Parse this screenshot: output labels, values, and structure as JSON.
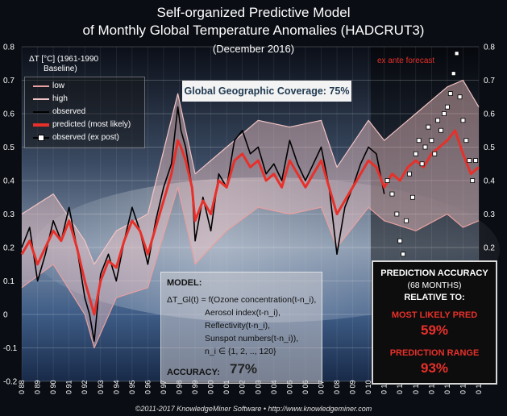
{
  "colors": {
    "low": "#e8a0a0",
    "high": "#f2c4c4",
    "observed": "#000000",
    "predicted": "#e8302a",
    "expost": "#ffffff",
    "accent": "#e8302a"
  },
  "header": {
    "title_line1": "Self-organized Predictive Model",
    "title_line2": "of Monthly Global Temperature Anomalies (HADCRUT3)",
    "title_line3": "(December 2016)"
  },
  "ylabel": {
    "line1": "ΔT [°C] (1961-1990",
    "line2": "Baseline)"
  },
  "legend": {
    "low": "low",
    "high": "high",
    "observed": "observed",
    "predicted": "predicted (most likely)",
    "expost": "observed (ex post)"
  },
  "coverage": "Global Geographic Coverage: 75%",
  "forecast_label": "ex ante forecast",
  "model": {
    "title": "MODEL:",
    "line1": "ΔT_Gl(t) = f(Ozone concentration(t-n_i),",
    "line2": "Aerosol index(t-n_i),",
    "line3": "Reflectivity(t-n_i),",
    "line4": "Sunspot numbers(t-n_i)),",
    "line5": "n_i ∈ {1, 2, .., 120}",
    "accuracy_label": "ACCURACY:",
    "accuracy_value": "77%"
  },
  "prediction_accuracy": {
    "title": "PREDICTION ACCURACY",
    "subtitle": "(68 MONTHS)",
    "relative": "RELATIVE TO:",
    "most_likely_label": "MOST LIKELY PRED",
    "most_likely_value": "59%",
    "range_label": "PREDICTION RANGE",
    "range_value": "93%"
  },
  "copyright": "©2011-2017 KnowledgeMiner Software  •  http://www.knowledgeminer.com",
  "chart_data": {
    "type": "line",
    "x_range": [
      1988,
      2017
    ],
    "ylim": [
      -0.2,
      0.8
    ],
    "ytick_labels": [
      "-0.2",
      "-0.1",
      "0",
      "0.1",
      "0.2",
      "0.3",
      "0.4",
      "0.5",
      "0.6",
      "0.7",
      "0.8"
    ],
    "xtick_labels": [
      "0 88",
      "0 89",
      "0 90",
      "0 91",
      "0 92",
      "0 93",
      "0 94",
      "0 95",
      "0 96",
      "0 97",
      "0 98",
      "0 99",
      "0 00",
      "0 01",
      "0 02",
      "0 03",
      "0 04",
      "0 05",
      "0 06",
      "0 07",
      "0 08",
      "0 09",
      "0 10",
      "0 11",
      "0 12",
      "0 13",
      "0 14",
      "0 15",
      "0 16",
      "0 17"
    ],
    "forecast_start": 2011.2,
    "series": [
      {
        "name": "observed",
        "x": [
          1988.0,
          1988.5,
          1989.0,
          1989.5,
          1990.0,
          1990.5,
          1991.0,
          1991.5,
          1992.0,
          1992.3,
          1992.6,
          1993.0,
          1993.5,
          1994.0,
          1994.5,
          1995.0,
          1995.5,
          1996.0,
          1996.5,
          1997.0,
          1997.5,
          1997.9,
          1998.1,
          1998.4,
          1998.8,
          1999.0,
          1999.5,
          2000.0,
          2000.5,
          2001.0,
          2001.5,
          2002.0,
          2002.5,
          2003.0,
          2003.5,
          2004.0,
          2004.5,
          2005.0,
          2005.5,
          2006.0,
          2006.5,
          2007.0,
          2007.5,
          2008.0,
          2008.5,
          2009.0,
          2009.5,
          2010.0,
          2010.5,
          2011.0
        ],
        "y": [
          0.2,
          0.26,
          0.1,
          0.18,
          0.28,
          0.22,
          0.32,
          0.2,
          0.05,
          0.0,
          -0.08,
          0.12,
          0.18,
          0.1,
          0.22,
          0.32,
          0.25,
          0.15,
          0.28,
          0.38,
          0.45,
          0.62,
          0.55,
          0.5,
          0.38,
          0.22,
          0.35,
          0.25,
          0.42,
          0.38,
          0.52,
          0.55,
          0.48,
          0.5,
          0.42,
          0.45,
          0.4,
          0.52,
          0.45,
          0.4,
          0.45,
          0.5,
          0.38,
          0.18,
          0.32,
          0.38,
          0.45,
          0.5,
          0.48,
          0.36
        ]
      },
      {
        "name": "predicted (most likely)",
        "x": [
          1988.0,
          1988.5,
          1989.0,
          1989.5,
          1990.0,
          1990.5,
          1991.0,
          1991.5,
          1992.0,
          1992.3,
          1992.6,
          1993.0,
          1993.5,
          1994.0,
          1994.5,
          1995.0,
          1995.5,
          1996.0,
          1996.5,
          1997.0,
          1997.5,
          1997.9,
          1998.1,
          1998.4,
          1998.8,
          1999.0,
          1999.5,
          2000.0,
          2000.5,
          2001.0,
          2001.5,
          2002.0,
          2002.5,
          2003.0,
          2003.5,
          2004.0,
          2004.5,
          2005.0,
          2005.5,
          2006.0,
          2006.5,
          2007.0,
          2007.5,
          2008.0,
          2008.5,
          2009.0,
          2009.5,
          2010.0,
          2010.5,
          2011.0,
          2011.5,
          2012.0,
          2012.5,
          2013.0,
          2013.5,
          2014.0,
          2014.5,
          2015.0,
          2015.5,
          2016.0,
          2016.5,
          2017.0
        ],
        "y": [
          0.18,
          0.22,
          0.15,
          0.2,
          0.25,
          0.22,
          0.28,
          0.2,
          0.1,
          0.05,
          0.0,
          0.1,
          0.16,
          0.14,
          0.22,
          0.28,
          0.25,
          0.18,
          0.26,
          0.34,
          0.42,
          0.52,
          0.5,
          0.46,
          0.38,
          0.28,
          0.34,
          0.3,
          0.4,
          0.38,
          0.46,
          0.48,
          0.44,
          0.46,
          0.4,
          0.42,
          0.38,
          0.46,
          0.42,
          0.38,
          0.42,
          0.46,
          0.38,
          0.3,
          0.34,
          0.38,
          0.42,
          0.46,
          0.44,
          0.38,
          0.42,
          0.4,
          0.44,
          0.46,
          0.44,
          0.48,
          0.5,
          0.52,
          0.55,
          0.48,
          0.42,
          0.44
        ]
      },
      {
        "name": "low",
        "x": [
          1988.0,
          1990.0,
          1992.0,
          1992.6,
          1994.0,
          1996.0,
          1997.9,
          1999.0,
          2001.0,
          2003.0,
          2005.0,
          2007.0,
          2008.0,
          2010.0,
          2011.0,
          2013.0,
          2015.0,
          2016.0,
          2017.0
        ],
        "y": [
          0.08,
          0.15,
          0.0,
          -0.1,
          0.05,
          0.08,
          0.38,
          0.15,
          0.25,
          0.32,
          0.3,
          0.32,
          0.2,
          0.32,
          0.28,
          0.25,
          0.3,
          0.26,
          0.28
        ]
      },
      {
        "name": "high",
        "x": [
          1988.0,
          1990.0,
          1992.0,
          1992.6,
          1994.0,
          1996.0,
          1997.9,
          1999.0,
          2001.0,
          2003.0,
          2005.0,
          2007.0,
          2008.0,
          2010.0,
          2011.0,
          2013.0,
          2015.0,
          2016.0,
          2017.0
        ],
        "y": [
          0.3,
          0.36,
          0.22,
          0.15,
          0.25,
          0.3,
          0.66,
          0.42,
          0.5,
          0.58,
          0.56,
          0.58,
          0.44,
          0.58,
          0.52,
          0.6,
          0.68,
          0.7,
          0.62
        ]
      },
      {
        "name": "observed (ex post)",
        "x": [
          2011.2,
          2011.5,
          2011.8,
          2012.0,
          2012.2,
          2012.4,
          2012.6,
          2012.8,
          2013.0,
          2013.2,
          2013.4,
          2013.6,
          2013.8,
          2014.0,
          2014.2,
          2014.4,
          2014.6,
          2014.8,
          2015.0,
          2015.2,
          2015.4,
          2015.6,
          2015.8,
          2016.0,
          2016.2,
          2016.4,
          2016.6,
          2016.8
        ],
        "y": [
          0.4,
          0.36,
          0.3,
          0.22,
          0.18,
          0.28,
          0.42,
          0.35,
          0.48,
          0.52,
          0.45,
          0.5,
          0.56,
          0.52,
          0.48,
          0.58,
          0.55,
          0.6,
          0.62,
          0.66,
          0.72,
          0.78,
          0.65,
          0.58,
          0.52,
          0.46,
          0.4,
          0.46
        ]
      }
    ]
  }
}
